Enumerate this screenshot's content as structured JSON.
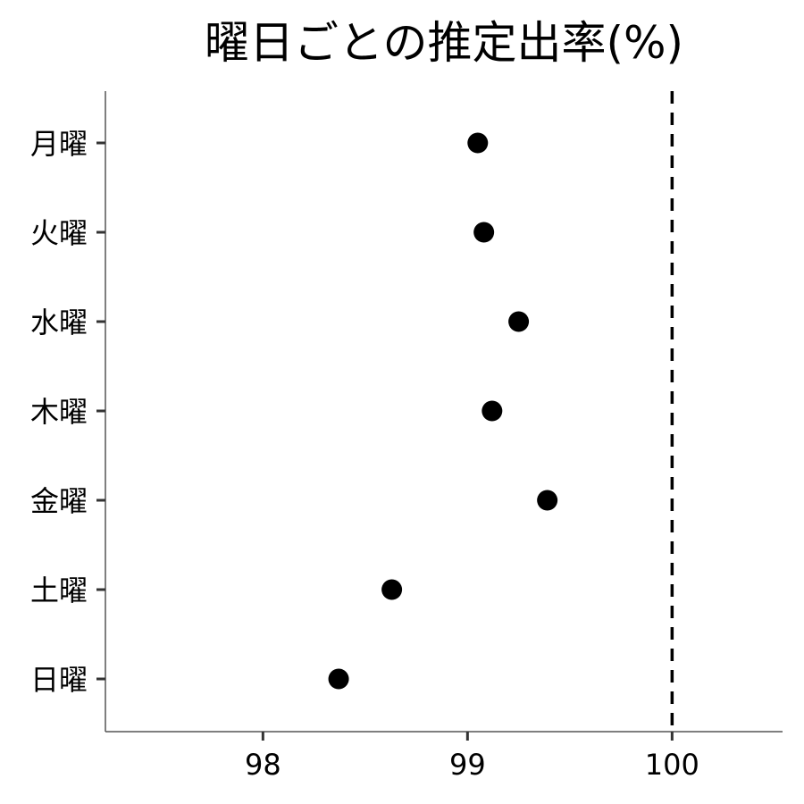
{
  "chart_data": {
    "type": "scatter",
    "title": "曜日ごとの推定出率(%)",
    "xlabel": "",
    "ylabel": "",
    "categories": [
      "月曜",
      "火曜",
      "水曜",
      "木曜",
      "金曜",
      "土曜",
      "日曜"
    ],
    "values": [
      99.05,
      99.08,
      99.25,
      99.12,
      99.39,
      98.63,
      98.37
    ],
    "xlim": [
      97.23,
      100.54
    ],
    "x_ticks": [
      98,
      99,
      100
    ],
    "x_tick_labels": [
      "98",
      "99",
      "100"
    ],
    "reference_line": {
      "x": 100,
      "style": "dashed",
      "color": "#000000"
    },
    "grid": false,
    "legend": "none",
    "point_color": "#000000",
    "axis_color": "#555555"
  }
}
